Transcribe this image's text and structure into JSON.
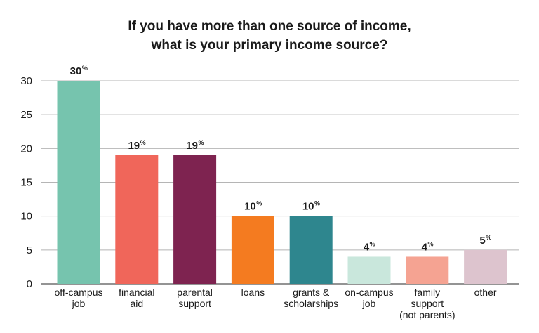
{
  "chart_data": {
    "type": "bar",
    "title": [
      "If you have more than one source of income,",
      "what is your primary income source?"
    ],
    "xlabel": "",
    "ylabel": "",
    "ylim": [
      0,
      30
    ],
    "yticks": [
      0,
      5,
      10,
      15,
      20,
      25,
      30
    ],
    "grid": true,
    "categories": [
      [
        "off-campus",
        "job"
      ],
      [
        "financial",
        "aid"
      ],
      [
        "parental",
        "support"
      ],
      [
        "loans"
      ],
      [
        "grants &",
        "scholarships"
      ],
      [
        "on-campus",
        "job"
      ],
      [
        "family",
        "support",
        "(not parents)"
      ],
      [
        "other"
      ]
    ],
    "values": [
      30,
      19,
      19,
      10,
      10,
      4,
      4,
      5
    ],
    "data_labels": [
      "30",
      "19",
      "19",
      "10",
      "10",
      "4",
      "4",
      "5"
    ],
    "label_suffix": "%",
    "colors": [
      "#76c4ae",
      "#f0665a",
      "#7e2350",
      "#f47b20",
      "#2e868e",
      "#c9e7dc",
      "#f5a392",
      "#ddc4ce"
    ]
  }
}
